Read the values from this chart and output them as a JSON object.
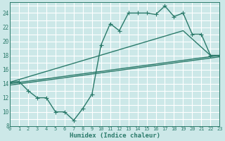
{
  "title": "",
  "xlabel": "Humidex (Indice chaleur)",
  "bg_color": "#cce8e8",
  "grid_color": "#ffffff",
  "line_color": "#2a7a6a",
  "xlim": [
    0,
    23
  ],
  "ylim": [
    8,
    25.5
  ],
  "yticks": [
    8,
    10,
    12,
    14,
    16,
    18,
    20,
    22,
    24
  ],
  "xticks": [
    0,
    1,
    2,
    3,
    4,
    5,
    6,
    7,
    8,
    9,
    10,
    11,
    12,
    13,
    14,
    15,
    16,
    17,
    18,
    19,
    20,
    21,
    22,
    23
  ],
  "line1_x": [
    0,
    1,
    2,
    3,
    4,
    5,
    6,
    7,
    8,
    9,
    10,
    11,
    12,
    13,
    14,
    15,
    16,
    17,
    18,
    19,
    20,
    21,
    22,
    23
  ],
  "line1_y": [
    14.2,
    14.3,
    13.0,
    12.0,
    12.0,
    10.0,
    10.0,
    8.8,
    10.5,
    12.5,
    19.5,
    22.5,
    21.5,
    24.0,
    24.0,
    24.0,
    23.8,
    25.0,
    23.5,
    24.0,
    21.0,
    21.0,
    18.0,
    18.0
  ],
  "line2_x": [
    0,
    19,
    22,
    23
  ],
  "line2_y": [
    14.2,
    21.5,
    18.0,
    18.0
  ],
  "line3_x": [
    0,
    23
  ],
  "line3_y": [
    14.0,
    18.0
  ],
  "line4_x": [
    0,
    23
  ],
  "line4_y": [
    13.8,
    17.8
  ],
  "marker_size": 3,
  "line_width": 1.0,
  "tick_fontsize": 5.0,
  "xlabel_fontsize": 6.5
}
